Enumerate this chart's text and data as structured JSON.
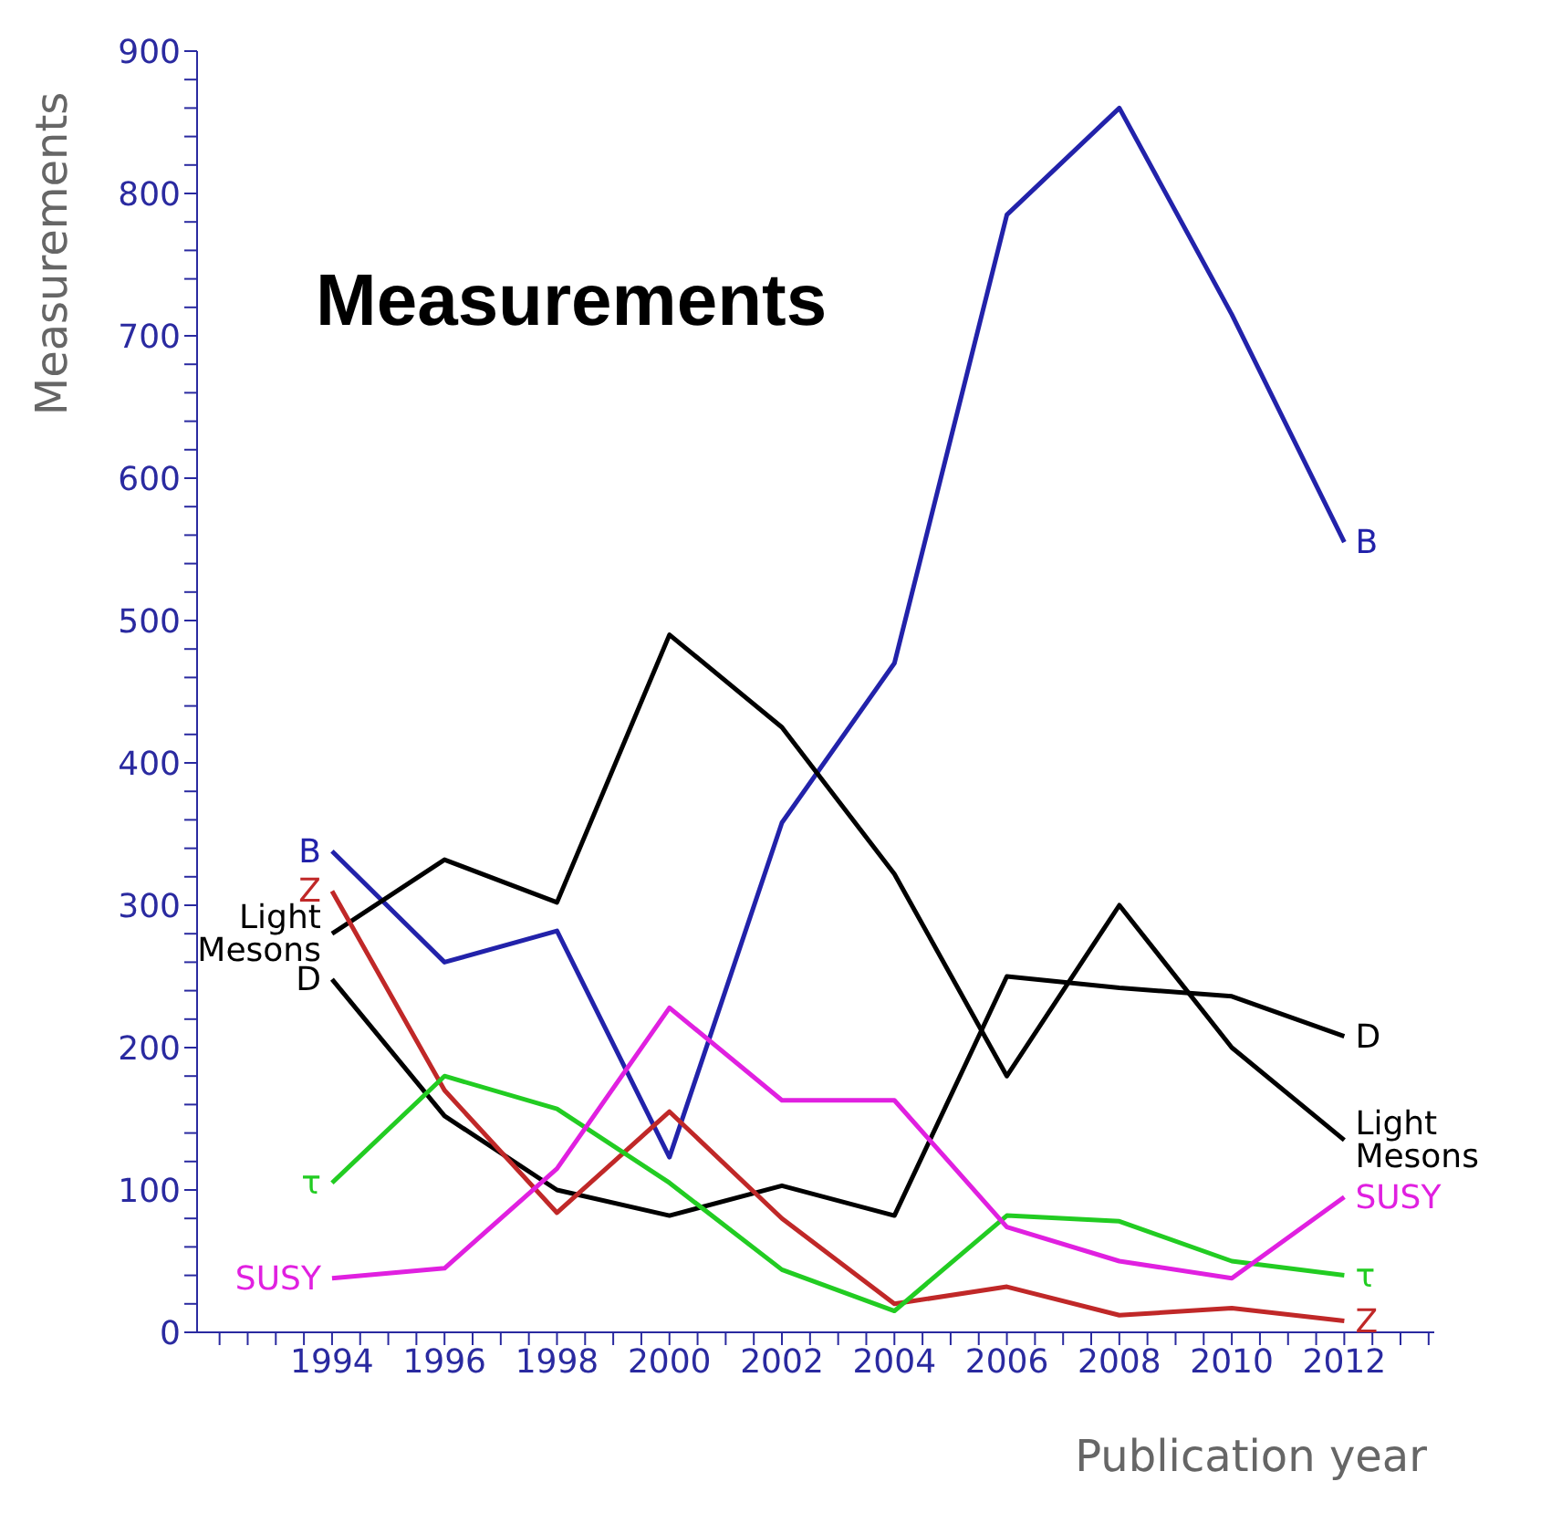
{
  "chart_data": {
    "type": "line",
    "title": "Measurements",
    "xlabel": "Publication year",
    "ylabel": "Measurements",
    "x": [
      1994,
      1996,
      1998,
      2000,
      2002,
      2004,
      2006,
      2008,
      2010,
      2012
    ],
    "series": [
      {
        "name": "B",
        "color": "#2222aa",
        "values": [
          338,
          260,
          282,
          123,
          358,
          470,
          785,
          860,
          715,
          555
        ]
      },
      {
        "name": "Light Mesons",
        "color": "#000000",
        "values": [
          280,
          332,
          302,
          490,
          425,
          322,
          180,
          300,
          200,
          135
        ]
      },
      {
        "name": "D",
        "color": "#000000",
        "values": [
          248,
          152,
          100,
          82,
          103,
          82,
          250,
          242,
          236,
          208
        ]
      },
      {
        "name": "Z",
        "color": "#c02828",
        "values": [
          310,
          170,
          84,
          155,
          80,
          20,
          32,
          12,
          17,
          8
        ]
      },
      {
        "name": "τ",
        "color": "#22cc22",
        "values": [
          105,
          180,
          157,
          105,
          44,
          15,
          82,
          78,
          50,
          40
        ]
      },
      {
        "name": "SUSY",
        "color": "#e020e0",
        "values": [
          38,
          45,
          115,
          228,
          163,
          163,
          74,
          50,
          38,
          95
        ]
      }
    ],
    "xlim": [
      1991.6,
      2013.6
    ],
    "xticks": [
      {
        "value": 1992,
        "label": null
      },
      {
        "value": 1992.5,
        "label": null
      },
      {
        "value": 1993,
        "label": null
      },
      {
        "value": 1993.5,
        "label": null
      },
      1994,
      {
        "value": 1994.5,
        "label": null
      },
      {
        "value": 1995,
        "label": null
      },
      {
        "value": 1995.5,
        "label": null
      },
      1996,
      {
        "value": 1996.5,
        "label": null
      },
      {
        "value": 1997,
        "label": null
      },
      {
        "value": 1997.5,
        "label": null
      },
      1998,
      {
        "value": 1998.5,
        "label": null
      },
      {
        "value": 1999,
        "label": null
      },
      {
        "value": 1999.5,
        "label": null
      },
      2000,
      {
        "value": 2000.5,
        "label": null
      },
      {
        "value": 2001,
        "label": null
      },
      {
        "value": 2001.5,
        "label": null
      },
      2002,
      {
        "value": 2002.5,
        "label": null
      },
      {
        "value": 2003,
        "label": null
      },
      {
        "value": 2003.5,
        "label": null
      },
      2004,
      {
        "value": 2004.5,
        "label": null
      },
      {
        "value": 2005,
        "label": null
      },
      {
        "value": 2005.5,
        "label": null
      },
      2006,
      {
        "value": 2006.5,
        "label": null
      },
      {
        "value": 2007,
        "label": null
      },
      {
        "value": 2007.5,
        "label": null
      },
      2008,
      {
        "value": 2008.5,
        "label": null
      },
      {
        "value": 2009,
        "label": null
      },
      {
        "value": 2009.5,
        "label": null
      },
      2010,
      {
        "value": 2010.5,
        "label": null
      },
      {
        "value": 2011,
        "label": null
      },
      {
        "value": 2011.5,
        "label": null
      },
      2012,
      {
        "value": 2012.5,
        "label": null
      },
      {
        "value": 2013,
        "label": null
      },
      {
        "value": 2013.5,
        "label": null
      }
    ],
    "ylim": [
      0,
      900
    ],
    "yticks": [
      0,
      {
        "value": 20,
        "label": null
      },
      {
        "value": 40,
        "label": null
      },
      {
        "value": 60,
        "label": null
      },
      {
        "value": 80,
        "label": null
      },
      100,
      {
        "value": 120,
        "label": null
      },
      {
        "value": 140,
        "label": null
      },
      {
        "value": 160,
        "label": null
      },
      {
        "value": 180,
        "label": null
      },
      200,
      {
        "value": 220,
        "label": null
      },
      {
        "value": 240,
        "label": null
      },
      {
        "value": 260,
        "label": null
      },
      {
        "value": 280,
        "label": null
      },
      300,
      {
        "value": 320,
        "label": null
      },
      {
        "value": 340,
        "label": null
      },
      {
        "value": 360,
        "label": null
      },
      {
        "value": 380,
        "label": null
      },
      400,
      {
        "value": 420,
        "label": null
      },
      {
        "value": 440,
        "label": null
      },
      {
        "value": 460,
        "label": null
      },
      {
        "value": 480,
        "label": null
      },
      500,
      {
        "value": 520,
        "label": null
      },
      {
        "value": 540,
        "label": null
      },
      {
        "value": 560,
        "label": null
      },
      {
        "value": 580,
        "label": null
      },
      600,
      {
        "value": 620,
        "label": null
      },
      {
        "value": 640,
        "label": null
      },
      {
        "value": 660,
        "label": null
      },
      {
        "value": 680,
        "label": null
      },
      700,
      {
        "value": 720,
        "label": null
      },
      {
        "value": 740,
        "label": null
      },
      {
        "value": 760,
        "label": null
      },
      {
        "value": 780,
        "label": null
      },
      800,
      {
        "value": 820,
        "label": null
      },
      {
        "value": 840,
        "label": null
      },
      {
        "value": 860,
        "label": null
      },
      {
        "value": 880,
        "label": null
      },
      900
    ],
    "grid": false,
    "legend": false,
    "marker": "none",
    "line_style": "solid"
  }
}
